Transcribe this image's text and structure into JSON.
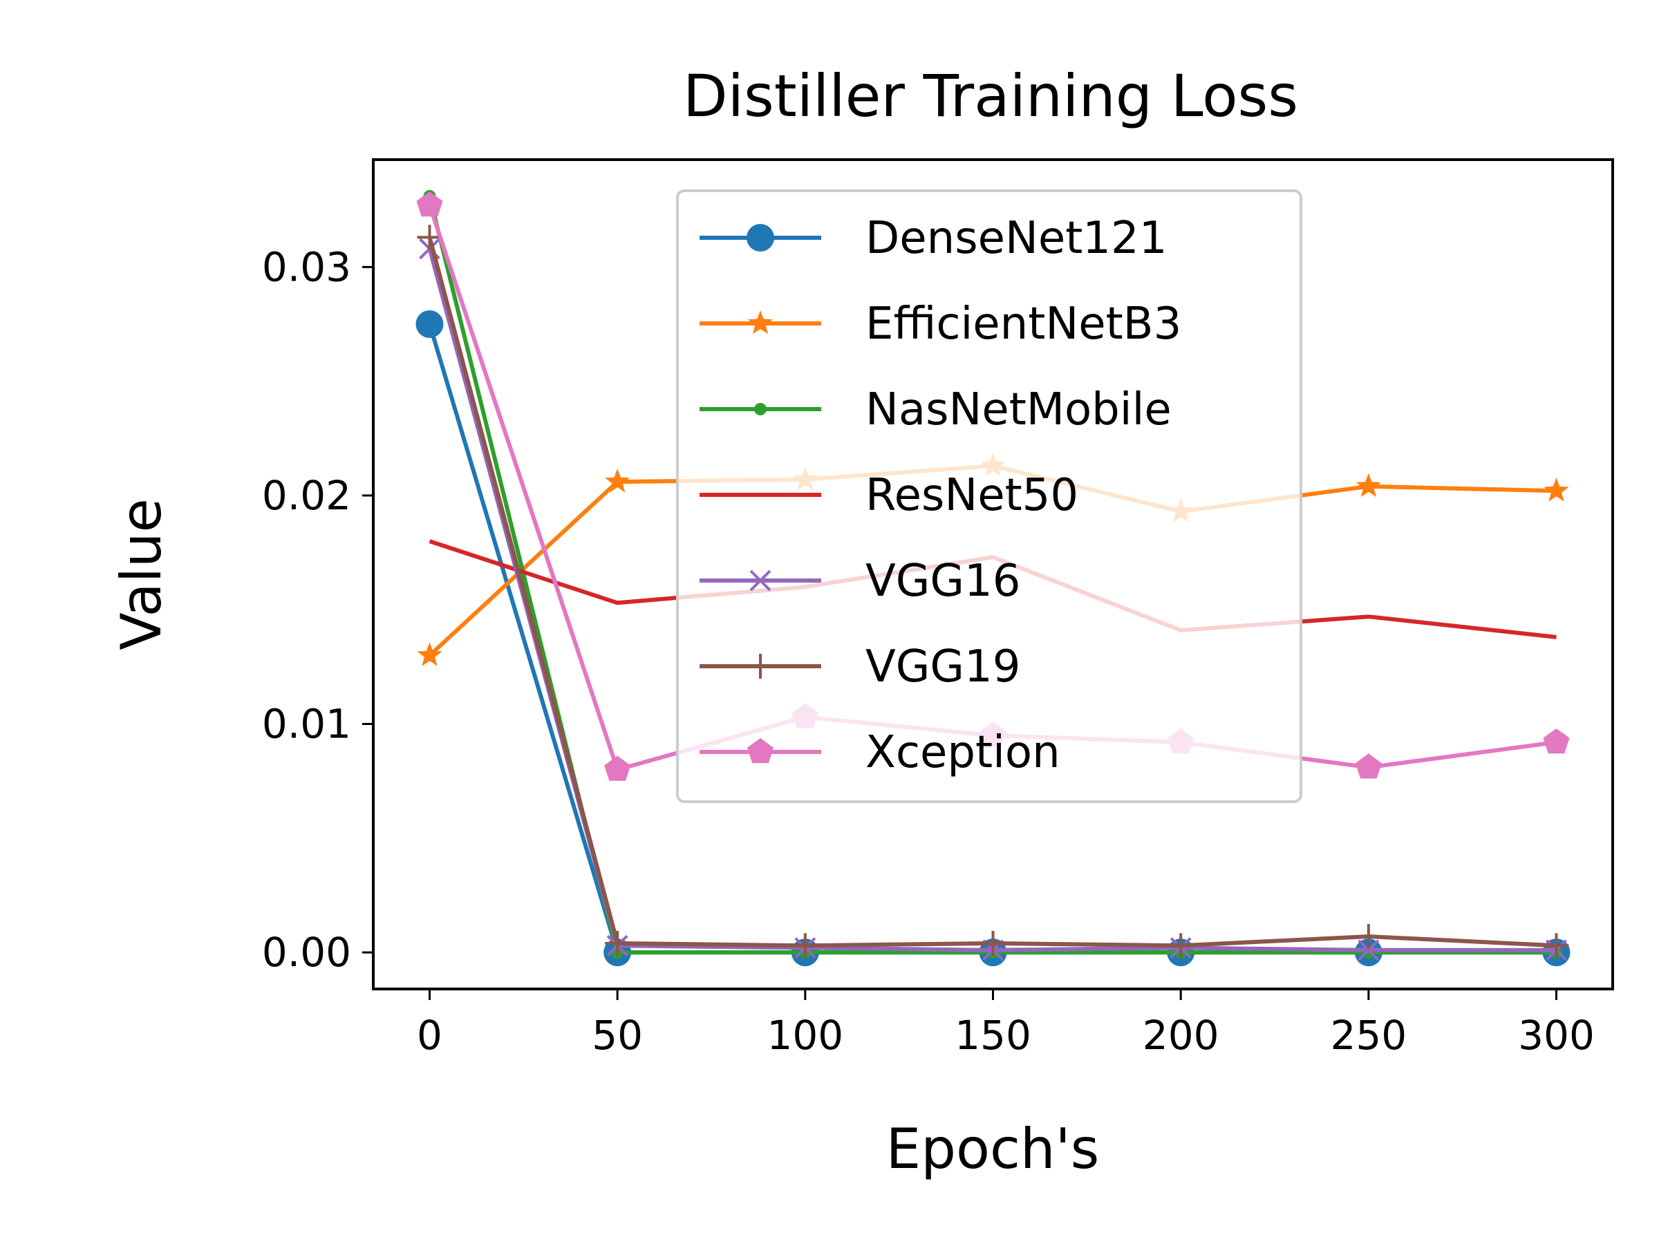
{
  "chart_data": {
    "type": "line",
    "title": "Distiller Training Loss",
    "xlabel": "Epoch's",
    "ylabel": "Value",
    "x": [
      0,
      50,
      100,
      150,
      200,
      250,
      300
    ],
    "xticks": [
      "0",
      "50",
      "100",
      "150",
      "200",
      "250",
      "300"
    ],
    "yticks": [
      "0.00",
      "0.01",
      "0.02",
      "0.03"
    ],
    "xlim": [
      -15,
      315
    ],
    "ylim": [
      -0.0016,
      0.0347
    ],
    "grid": false,
    "legend_position": "upper center",
    "series": [
      {
        "name": "DenseNet121",
        "color": "#1f77b4",
        "marker": "circle-large",
        "values": [
          0.0275,
          0.0,
          0.0,
          0.0,
          0.0,
          0.0,
          0.0
        ]
      },
      {
        "name": "EfficientNetB3",
        "color": "#ff7f0e",
        "marker": "star",
        "values": [
          0.013,
          0.0206,
          0.0207,
          0.0213,
          0.0193,
          0.0204,
          0.0202
        ]
      },
      {
        "name": "NasNetMobile",
        "color": "#2ca02c",
        "marker": "circle-small",
        "values": [
          0.0331,
          0.0,
          0.0,
          0.0,
          0.0,
          0.0,
          0.0
        ]
      },
      {
        "name": "ResNet50",
        "color": "#d62728",
        "marker": "none",
        "values": [
          0.018,
          0.0153,
          0.016,
          0.0173,
          0.0141,
          0.0147,
          0.0138
        ]
      },
      {
        "name": "VGG16",
        "color": "#9467bd",
        "marker": "x",
        "values": [
          0.0308,
          0.0003,
          0.0002,
          0.0001,
          0.0002,
          0.0001,
          0.0001
        ]
      },
      {
        "name": "VGG19",
        "color": "#8c564b",
        "marker": "plus",
        "values": [
          0.0313,
          0.0004,
          0.0003,
          0.0004,
          0.0003,
          0.0007,
          0.0003
        ]
      },
      {
        "name": "Xception",
        "color": "#e377c2",
        "marker": "pentagon",
        "values": [
          0.0327,
          0.008,
          0.0103,
          0.0095,
          0.0092,
          0.0081,
          0.0092
        ]
      }
    ]
  }
}
